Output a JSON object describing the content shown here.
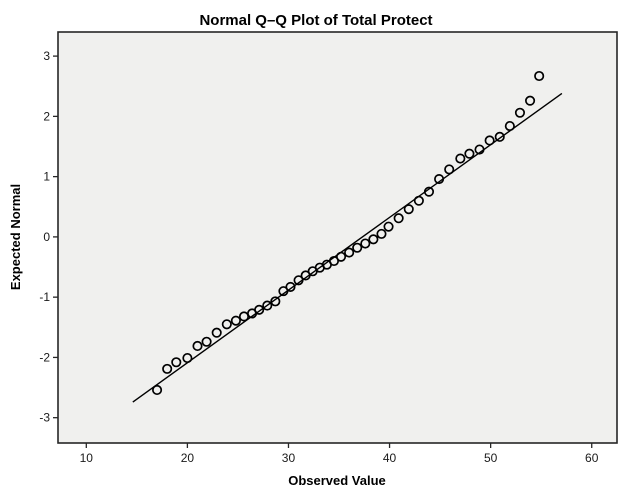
{
  "title": "Normal Q–Q Plot of Total Protect",
  "x_axis_label": "Observed Value",
  "y_axis_label": "Expected Normal",
  "colors": {
    "plot_background": "#f0f0ee",
    "frame_border": "#262626",
    "marker": "#000000",
    "reference_line": "#000000",
    "page_background": "#ffffff"
  },
  "chart_data": {
    "type": "scatter",
    "subtype": "normal-qq-plot",
    "title": "Normal Q–Q Plot of Total Protect",
    "xlabel": "Observed Value",
    "ylabel": "Expected Normal",
    "x_ticks": [
      10,
      20,
      30,
      40,
      50,
      60
    ],
    "y_ticks": [
      3,
      2,
      1,
      0,
      -1,
      -2,
      -3
    ],
    "x_range": [
      7.2,
      62.5
    ],
    "y_range": [
      -3.42,
      3.4
    ],
    "grid": false,
    "legend": "none",
    "marker_style": "open-circle",
    "points": [
      [
        17.0,
        -2.54
      ],
      [
        18.0,
        -2.19
      ],
      [
        18.9,
        -2.08
      ],
      [
        20.0,
        -2.01
      ],
      [
        21.0,
        -1.81
      ],
      [
        21.9,
        -1.74
      ],
      [
        22.9,
        -1.59
      ],
      [
        23.9,
        -1.45
      ],
      [
        24.8,
        -1.39
      ],
      [
        25.6,
        -1.32
      ],
      [
        26.4,
        -1.27
      ],
      [
        27.1,
        -1.21
      ],
      [
        27.9,
        -1.14
      ],
      [
        28.7,
        -1.07
      ],
      [
        29.5,
        -0.9
      ],
      [
        30.2,
        -0.83
      ],
      [
        31.0,
        -0.72
      ],
      [
        31.7,
        -0.64
      ],
      [
        32.4,
        -0.57
      ],
      [
        33.1,
        -0.51
      ],
      [
        33.8,
        -0.46
      ],
      [
        34.5,
        -0.4
      ],
      [
        35.2,
        -0.33
      ],
      [
        36.0,
        -0.26
      ],
      [
        36.8,
        -0.18
      ],
      [
        37.6,
        -0.11
      ],
      [
        38.4,
        -0.04
      ],
      [
        39.2,
        0.05
      ],
      [
        39.9,
        0.17
      ],
      [
        40.9,
        0.31
      ],
      [
        41.9,
        0.46
      ],
      [
        42.9,
        0.6
      ],
      [
        43.9,
        0.75
      ],
      [
        44.9,
        0.96
      ],
      [
        45.9,
        1.12
      ],
      [
        47.0,
        1.3
      ],
      [
        47.9,
        1.38
      ],
      [
        48.9,
        1.45
      ],
      [
        49.9,
        1.6
      ],
      [
        50.9,
        1.66
      ],
      [
        51.9,
        1.84
      ],
      [
        52.9,
        2.06
      ],
      [
        53.9,
        2.26
      ],
      [
        54.8,
        2.67
      ]
    ],
    "reference_line": {
      "x1": 14.6,
      "y1": -2.74,
      "x2": 57.05,
      "y2": 2.38
    }
  }
}
